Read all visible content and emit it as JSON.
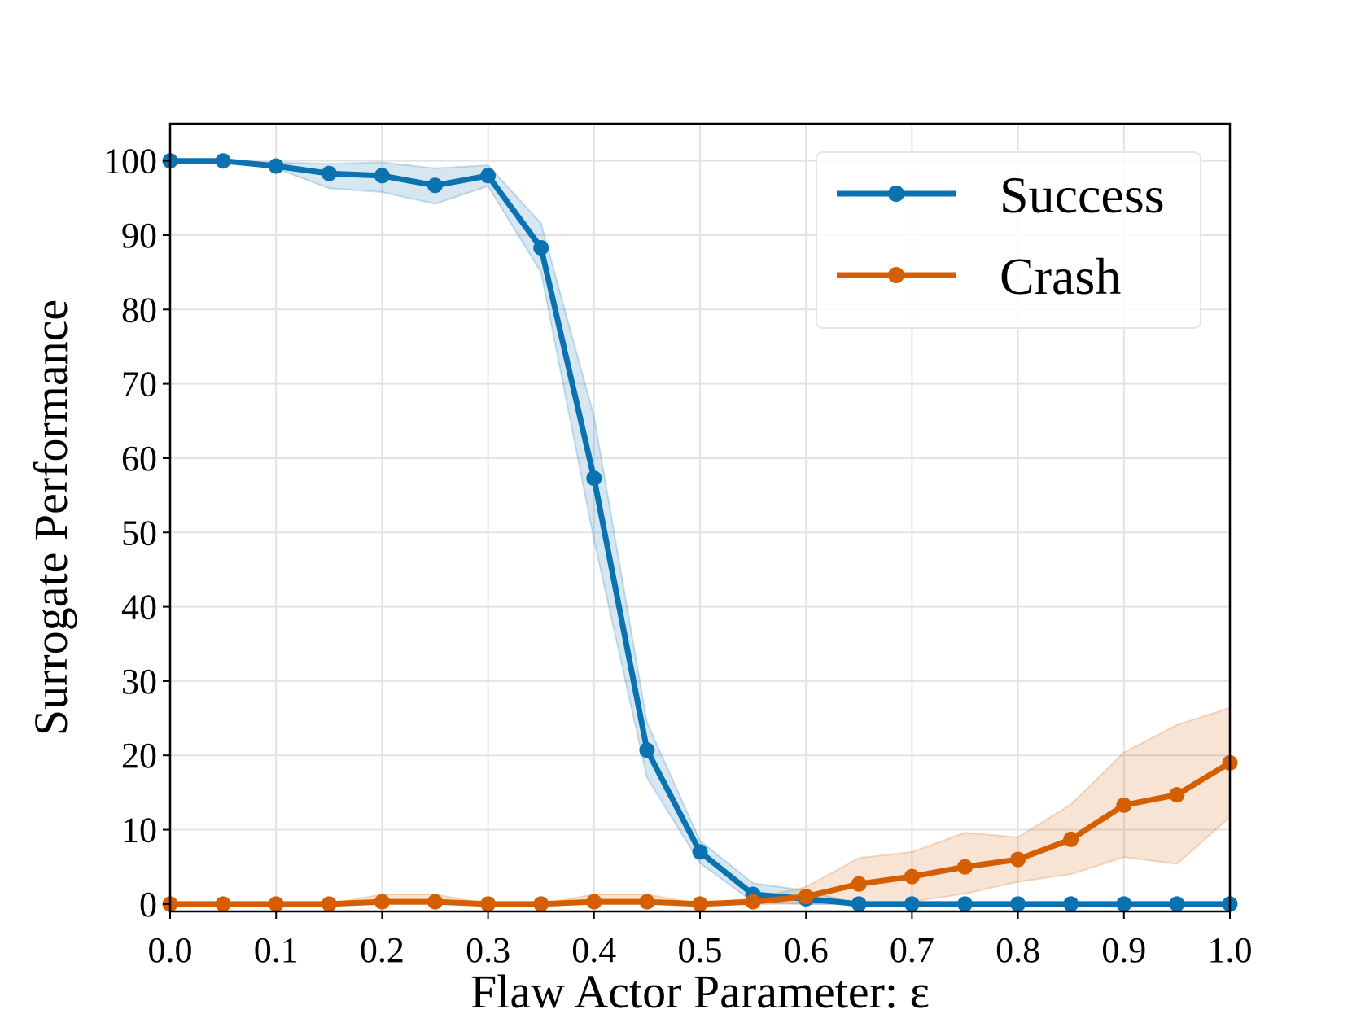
{
  "chart_data": {
    "type": "line",
    "title": "",
    "xlabel": "Flaw Actor Parameter: ε",
    "ylabel": "Surrogate Performance",
    "xlim": [
      0.0,
      1.0
    ],
    "ylim": [
      -1,
      105
    ],
    "xticks": [
      0.0,
      0.1,
      0.2,
      0.3,
      0.4,
      0.5,
      0.6,
      0.7,
      0.8,
      0.9,
      1.0
    ],
    "xtick_labels": [
      "0.0",
      "0.1",
      "0.2",
      "0.3",
      "0.4",
      "0.5",
      "0.6",
      "0.7",
      "0.8",
      "0.9",
      "1.0"
    ],
    "yticks": [
      0,
      10,
      20,
      30,
      40,
      50,
      60,
      70,
      80,
      90,
      100
    ],
    "ytick_labels": [
      "0",
      "10",
      "20",
      "30",
      "40",
      "50",
      "60",
      "70",
      "80",
      "90",
      "100"
    ],
    "grid": true,
    "legend_position": "top-right",
    "x": [
      0.0,
      0.05,
      0.1,
      0.15,
      0.2,
      0.25,
      0.3,
      0.35,
      0.4,
      0.45,
      0.5,
      0.55,
      0.6,
      0.65,
      0.7,
      0.75,
      0.8,
      0.85,
      0.9,
      0.95,
      1.0
    ],
    "series": [
      {
        "name": "Success",
        "color": "#0a72b0",
        "values": [
          100,
          100,
          99.3,
          98.3,
          98.0,
          96.7,
          98.0,
          88.3,
          57.3,
          20.7,
          7.0,
          1.3,
          0.7,
          0,
          0,
          0,
          0,
          0,
          0,
          0,
          0
        ],
        "lower": [
          100,
          100,
          99.0,
          96.3,
          95.8,
          94.2,
          96.6,
          85.0,
          49.0,
          17.0,
          5.5,
          0.3,
          0.0,
          0,
          0,
          0,
          0,
          0,
          0,
          0,
          0
        ],
        "upper": [
          100,
          100,
          99.8,
          99.6,
          99.8,
          99.0,
          99.4,
          91.6,
          65.6,
          24.4,
          8.5,
          2.8,
          1.8,
          0,
          0,
          0,
          0,
          0,
          0,
          0,
          0
        ]
      },
      {
        "name": "Crash",
        "color": "#d55e00",
        "values": [
          0,
          0,
          0,
          0,
          0.3,
          0.3,
          0,
          0,
          0.3,
          0.3,
          0,
          0.3,
          1.0,
          2.7,
          3.7,
          5.0,
          6.0,
          8.7,
          13.3,
          14.7,
          19.0
        ],
        "lower": [
          0,
          0,
          0,
          0,
          0,
          0,
          0,
          0,
          0,
          0,
          0,
          0,
          0.2,
          0.0,
          0.3,
          1.4,
          3.0,
          4.0,
          6.3,
          5.4,
          11.7
        ],
        "upper": [
          0,
          0,
          0,
          0,
          1.3,
          1.3,
          0,
          0,
          1.3,
          1.3,
          0,
          0.8,
          2.3,
          6.2,
          7.0,
          9.6,
          9.0,
          13.4,
          20.4,
          24.1,
          26.4
        ]
      }
    ]
  }
}
